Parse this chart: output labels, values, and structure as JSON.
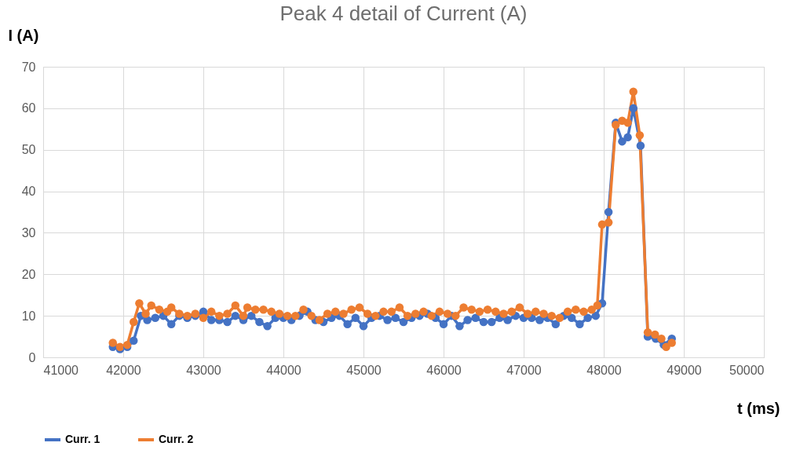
{
  "chart_data": {
    "type": "line",
    "title": "Peak 4 detail of Current (A)",
    "xlabel": "t (ms)",
    "ylabel": "I (A)",
    "xlim": [
      41000,
      50000
    ],
    "xticks": [
      41000,
      42000,
      43000,
      44000,
      45000,
      46000,
      47000,
      48000,
      49000,
      50000
    ],
    "ylim": [
      0,
      70
    ],
    "yticks": [
      0,
      10,
      20,
      30,
      40,
      50,
      60,
      70
    ],
    "grid": true,
    "legend": "bottom",
    "marker": "circle",
    "line_style": "solid",
    "series": [
      {
        "name": "Curr. 1",
        "color": "#4472c4",
        "x": [
          41870,
          41960,
          42050,
          42130,
          42220,
          42300,
          42400,
          42500,
          42600,
          42700,
          42800,
          42900,
          43000,
          43100,
          43200,
          43300,
          43400,
          43500,
          43600,
          43700,
          43800,
          43900,
          44000,
          44100,
          44200,
          44300,
          44400,
          44500,
          44600,
          44700,
          44800,
          44900,
          45000,
          45100,
          45200,
          45300,
          45400,
          45500,
          45600,
          45700,
          45800,
          45900,
          46000,
          46100,
          46200,
          46300,
          46400,
          46500,
          46600,
          46700,
          46800,
          46900,
          47000,
          47100,
          47200,
          47300,
          47400,
          47500,
          47600,
          47700,
          47800,
          47900,
          47980,
          48060,
          48150,
          48230,
          48300,
          48370,
          48460,
          48550,
          48650,
          48750,
          48850
        ],
        "values": [
          2.5,
          2,
          2.5,
          4,
          10,
          9,
          9.5,
          10,
          8,
          10,
          9.5,
          10,
          11,
          9,
          9,
          8.5,
          10,
          9,
          10,
          8.5,
          7.5,
          9.5,
          9.5,
          9,
          10,
          11,
          9,
          8.5,
          9.5,
          10,
          8,
          9.5,
          7.5,
          9.5,
          10,
          9,
          9.5,
          8.5,
          9.5,
          10,
          10.5,
          9.5,
          8,
          10,
          7.5,
          9,
          9.5,
          8.5,
          8.5,
          9.5,
          9,
          10,
          9.5,
          9.5,
          9,
          9.5,
          8,
          10,
          9.5,
          8,
          9.5,
          10,
          13,
          35,
          56.5,
          52,
          53,
          60,
          51,
          5,
          4.5,
          3,
          4.5
        ]
      },
      {
        "name": "Curr. 2",
        "color": "#ed7d31",
        "x": [
          41870,
          41960,
          42050,
          42130,
          42200,
          42280,
          42350,
          42450,
          42550,
          42600,
          42700,
          42800,
          42900,
          43000,
          43100,
          43200,
          43300,
          43400,
          43500,
          43550,
          43650,
          43750,
          43850,
          43950,
          44050,
          44150,
          44250,
          44350,
          44450,
          44550,
          44650,
          44750,
          44850,
          44950,
          45050,
          45150,
          45250,
          45350,
          45450,
          45550,
          45650,
          45750,
          45850,
          45950,
          46050,
          46150,
          46250,
          46350,
          46450,
          46550,
          46650,
          46750,
          46850,
          46950,
          47050,
          47150,
          47250,
          47350,
          47450,
          47550,
          47650,
          47750,
          47850,
          47920,
          47980,
          48060,
          48150,
          48230,
          48300,
          48370,
          48450,
          48550,
          48640,
          48720,
          48780,
          48850
        ],
        "values": [
          3.5,
          2.5,
          3,
          8.5,
          13,
          10.5,
          12.5,
          11.5,
          11,
          12,
          10.5,
          10,
          10.5,
          9.5,
          11,
          10,
          10.5,
          12.5,
          10,
          12,
          11.5,
          11.5,
          11,
          10.5,
          10,
          10,
          11.5,
          10,
          9,
          10.5,
          11,
          10.5,
          11.5,
          12,
          10.5,
          10,
          11,
          11,
          12,
          10,
          10.5,
          11,
          10,
          11,
          10.5,
          10,
          12,
          11.5,
          11,
          11.5,
          11,
          10.5,
          11,
          12,
          10.5,
          11,
          10.5,
          10,
          9.5,
          11,
          11.5,
          11,
          11.5,
          12.5,
          32,
          32.5,
          56,
          57,
          56.5,
          64,
          53.5,
          6,
          5.5,
          4.5,
          2.5,
          3.5
        ]
      }
    ]
  }
}
